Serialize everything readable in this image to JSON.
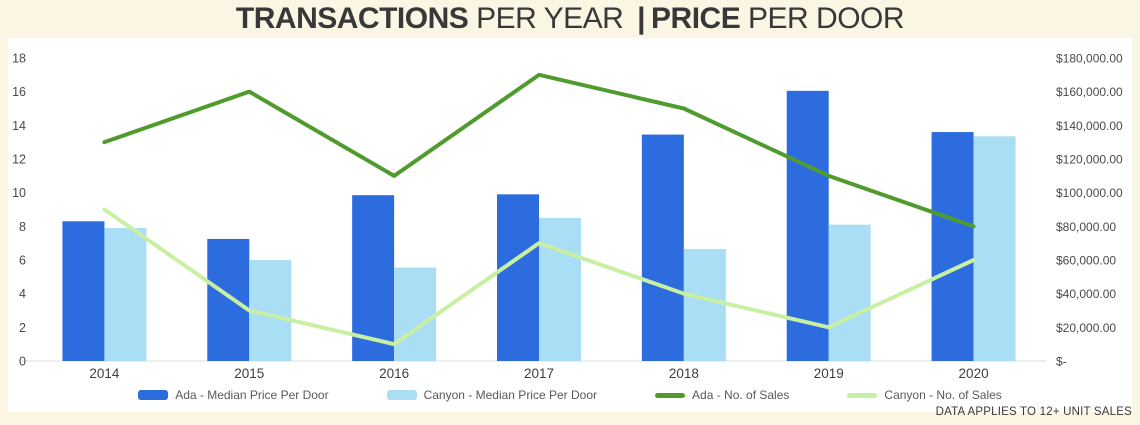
{
  "title": {
    "part1": "TRANSACTIONS",
    "part2": " PER YEAR ",
    "separator": "|",
    "part3": "PRICE",
    "part4": " PER DOOR"
  },
  "footer_note": "DATA APPLIES TO 12+ UNIT SALES",
  "colors": {
    "background": "#fbf6e4",
    "panel": "#ffffff",
    "title_text": "#383838",
    "axis_text": "#4a4a4a",
    "category_text": "#3f3f3f",
    "baseline": "#dcdcdc",
    "ada_bar": "#2d6cdf",
    "canyon_bar": "#a9def5",
    "ada_line": "#4f9b2d",
    "canyon_line": "#c9f0a2"
  },
  "legend": {
    "items": [
      {
        "label": "Ada - Median Price Per Door",
        "color": "#2d6cdf",
        "marker": "bar"
      },
      {
        "label": "Canyon - Median Price Per Door",
        "color": "#a9def5",
        "marker": "bar"
      },
      {
        "label": "Ada - No. of Sales",
        "color": "#4f9b2d",
        "marker": "line"
      },
      {
        "label": "Canyon - No. of Sales",
        "color": "#c9f0a2",
        "marker": "line"
      }
    ]
  },
  "chart_data": {
    "type": "combo-bar-line",
    "title": "TRANSACTIONS PER YEAR | PRICE PER DOOR",
    "categories": [
      "2014",
      "2015",
      "2016",
      "2017",
      "2018",
      "2019",
      "2020"
    ],
    "series": [
      {
        "name": "Ada - Median Price Per Door",
        "type": "bar",
        "axis": "right",
        "color": "#2d6cdf",
        "values": [
          83000,
          72500,
          98500,
          99000,
          134500,
          160500,
          136000
        ]
      },
      {
        "name": "Canyon - Median Price Per Door",
        "type": "bar",
        "axis": "right",
        "color": "#a9def5",
        "values": [
          79000,
          60000,
          55500,
          85000,
          66500,
          81000,
          133500
        ]
      },
      {
        "name": "Ada - No. of Sales",
        "type": "line",
        "axis": "left",
        "color": "#4f9b2d",
        "values": [
          13,
          16,
          11,
          17,
          15,
          11,
          8
        ]
      },
      {
        "name": "Canyon - No. of Sales",
        "type": "line",
        "axis": "left",
        "color": "#c9f0a2",
        "values": [
          9,
          3,
          1,
          7,
          4,
          2,
          6
        ]
      }
    ],
    "left_axis": {
      "min": 0,
      "max": 18,
      "ticks": [
        "0",
        "2",
        "4",
        "6",
        "8",
        "10",
        "12",
        "14",
        "16",
        "18"
      ]
    },
    "right_axis": {
      "min": 0,
      "max": 180000,
      "ticks": [
        "$-",
        "$20,000.00",
        "$40,000.00",
        "$60,000.00",
        "$80,000.00",
        "$100,000.00",
        "$120,000.00",
        "$140,000.00",
        "$160,000.00",
        "$180,000.00"
      ]
    },
    "grid": false,
    "legend_position": "bottom"
  }
}
